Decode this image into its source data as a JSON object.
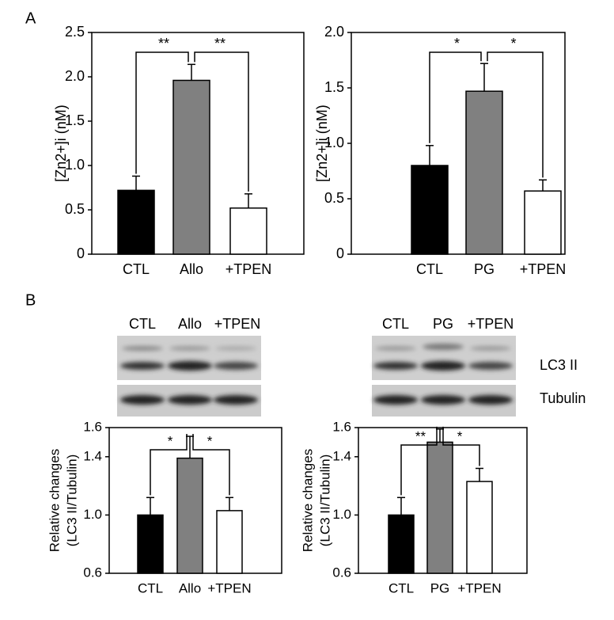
{
  "panels": [
    "A",
    "B"
  ],
  "blots": [
    {
      "lanes": [
        "CTL",
        "Allo",
        "+TPEN"
      ]
    },
    {
      "lanes": [
        "CTL",
        "PG",
        "+TPEN"
      ]
    }
  ],
  "blot_rows": [
    "LC3 II",
    "Tubulin"
  ],
  "chart_data": [
    {
      "type": "bar",
      "ylabel": [
        "[Zn2+]i (nM)"
      ],
      "categories": [
        "CTL",
        "Allo",
        "+TPEN"
      ],
      "values": [
        0.72,
        1.96,
        0.52
      ],
      "errors": [
        0.16,
        0.18,
        0.16
      ],
      "colors": [
        "#000000",
        "#808080",
        "#ffffff"
      ],
      "ylim": [
        0,
        2.5
      ],
      "yticks": [
        0,
        0.5,
        {
          "value": 1,
          "label": "1.0"
        },
        1.5,
        {
          "value": 2,
          "label": "2.0"
        },
        2.5
      ],
      "significance": [
        "**",
        "**"
      ]
    },
    {
      "type": "bar",
      "ylabel": [
        "[Zn2+]i (nM)"
      ],
      "categories": [
        "CTL",
        "PG",
        "+TPEN"
      ],
      "values": [
        0.8,
        1.47,
        0.57
      ],
      "errors": [
        0.18,
        0.25,
        0.1
      ],
      "colors": [
        "#000000",
        "#808080",
        "#ffffff"
      ],
      "ylim": [
        0,
        2
      ],
      "yticks": [
        0,
        0.5,
        {
          "value": 1,
          "label": "1.0"
        },
        1.5,
        {
          "value": 2,
          "label": "2.0"
        }
      ],
      "significance": [
        "*",
        "*"
      ]
    },
    {
      "type": "bar",
      "ylabel": [
        "Relative changes",
        "(LC3 II/Tubulin)"
      ],
      "categories": [
        "CTL",
        "Allo",
        "+TPEN"
      ],
      "values": [
        1.0,
        1.39,
        1.03
      ],
      "errors": [
        0.12,
        0.15,
        0.09
      ],
      "colors": [
        "#000000",
        "#808080",
        "#ffffff"
      ],
      "ylim": [
        0.6,
        1.6
      ],
      "yticks": [
        0.6,
        {
          "value": 1,
          "label": "1.0"
        },
        1.4,
        1.6
      ],
      "significance": [
        "*",
        "*"
      ]
    },
    {
      "type": "bar",
      "ylabel": [
        "Relative changes",
        "(LC3 II/Tubulin)"
      ],
      "categories": [
        "CTL",
        "PG",
        "+TPEN"
      ],
      "values": [
        1.0,
        1.5,
        1.23
      ],
      "errors": [
        0.12,
        0.09,
        0.09
      ],
      "colors": [
        "#000000",
        "#808080",
        "#ffffff"
      ],
      "ylim": [
        0.6,
        1.6
      ],
      "yticks": [
        0.6,
        {
          "value": 1,
          "label": "1.0"
        },
        1.4,
        1.6
      ],
      "significance": [
        "**",
        "*"
      ]
    }
  ]
}
